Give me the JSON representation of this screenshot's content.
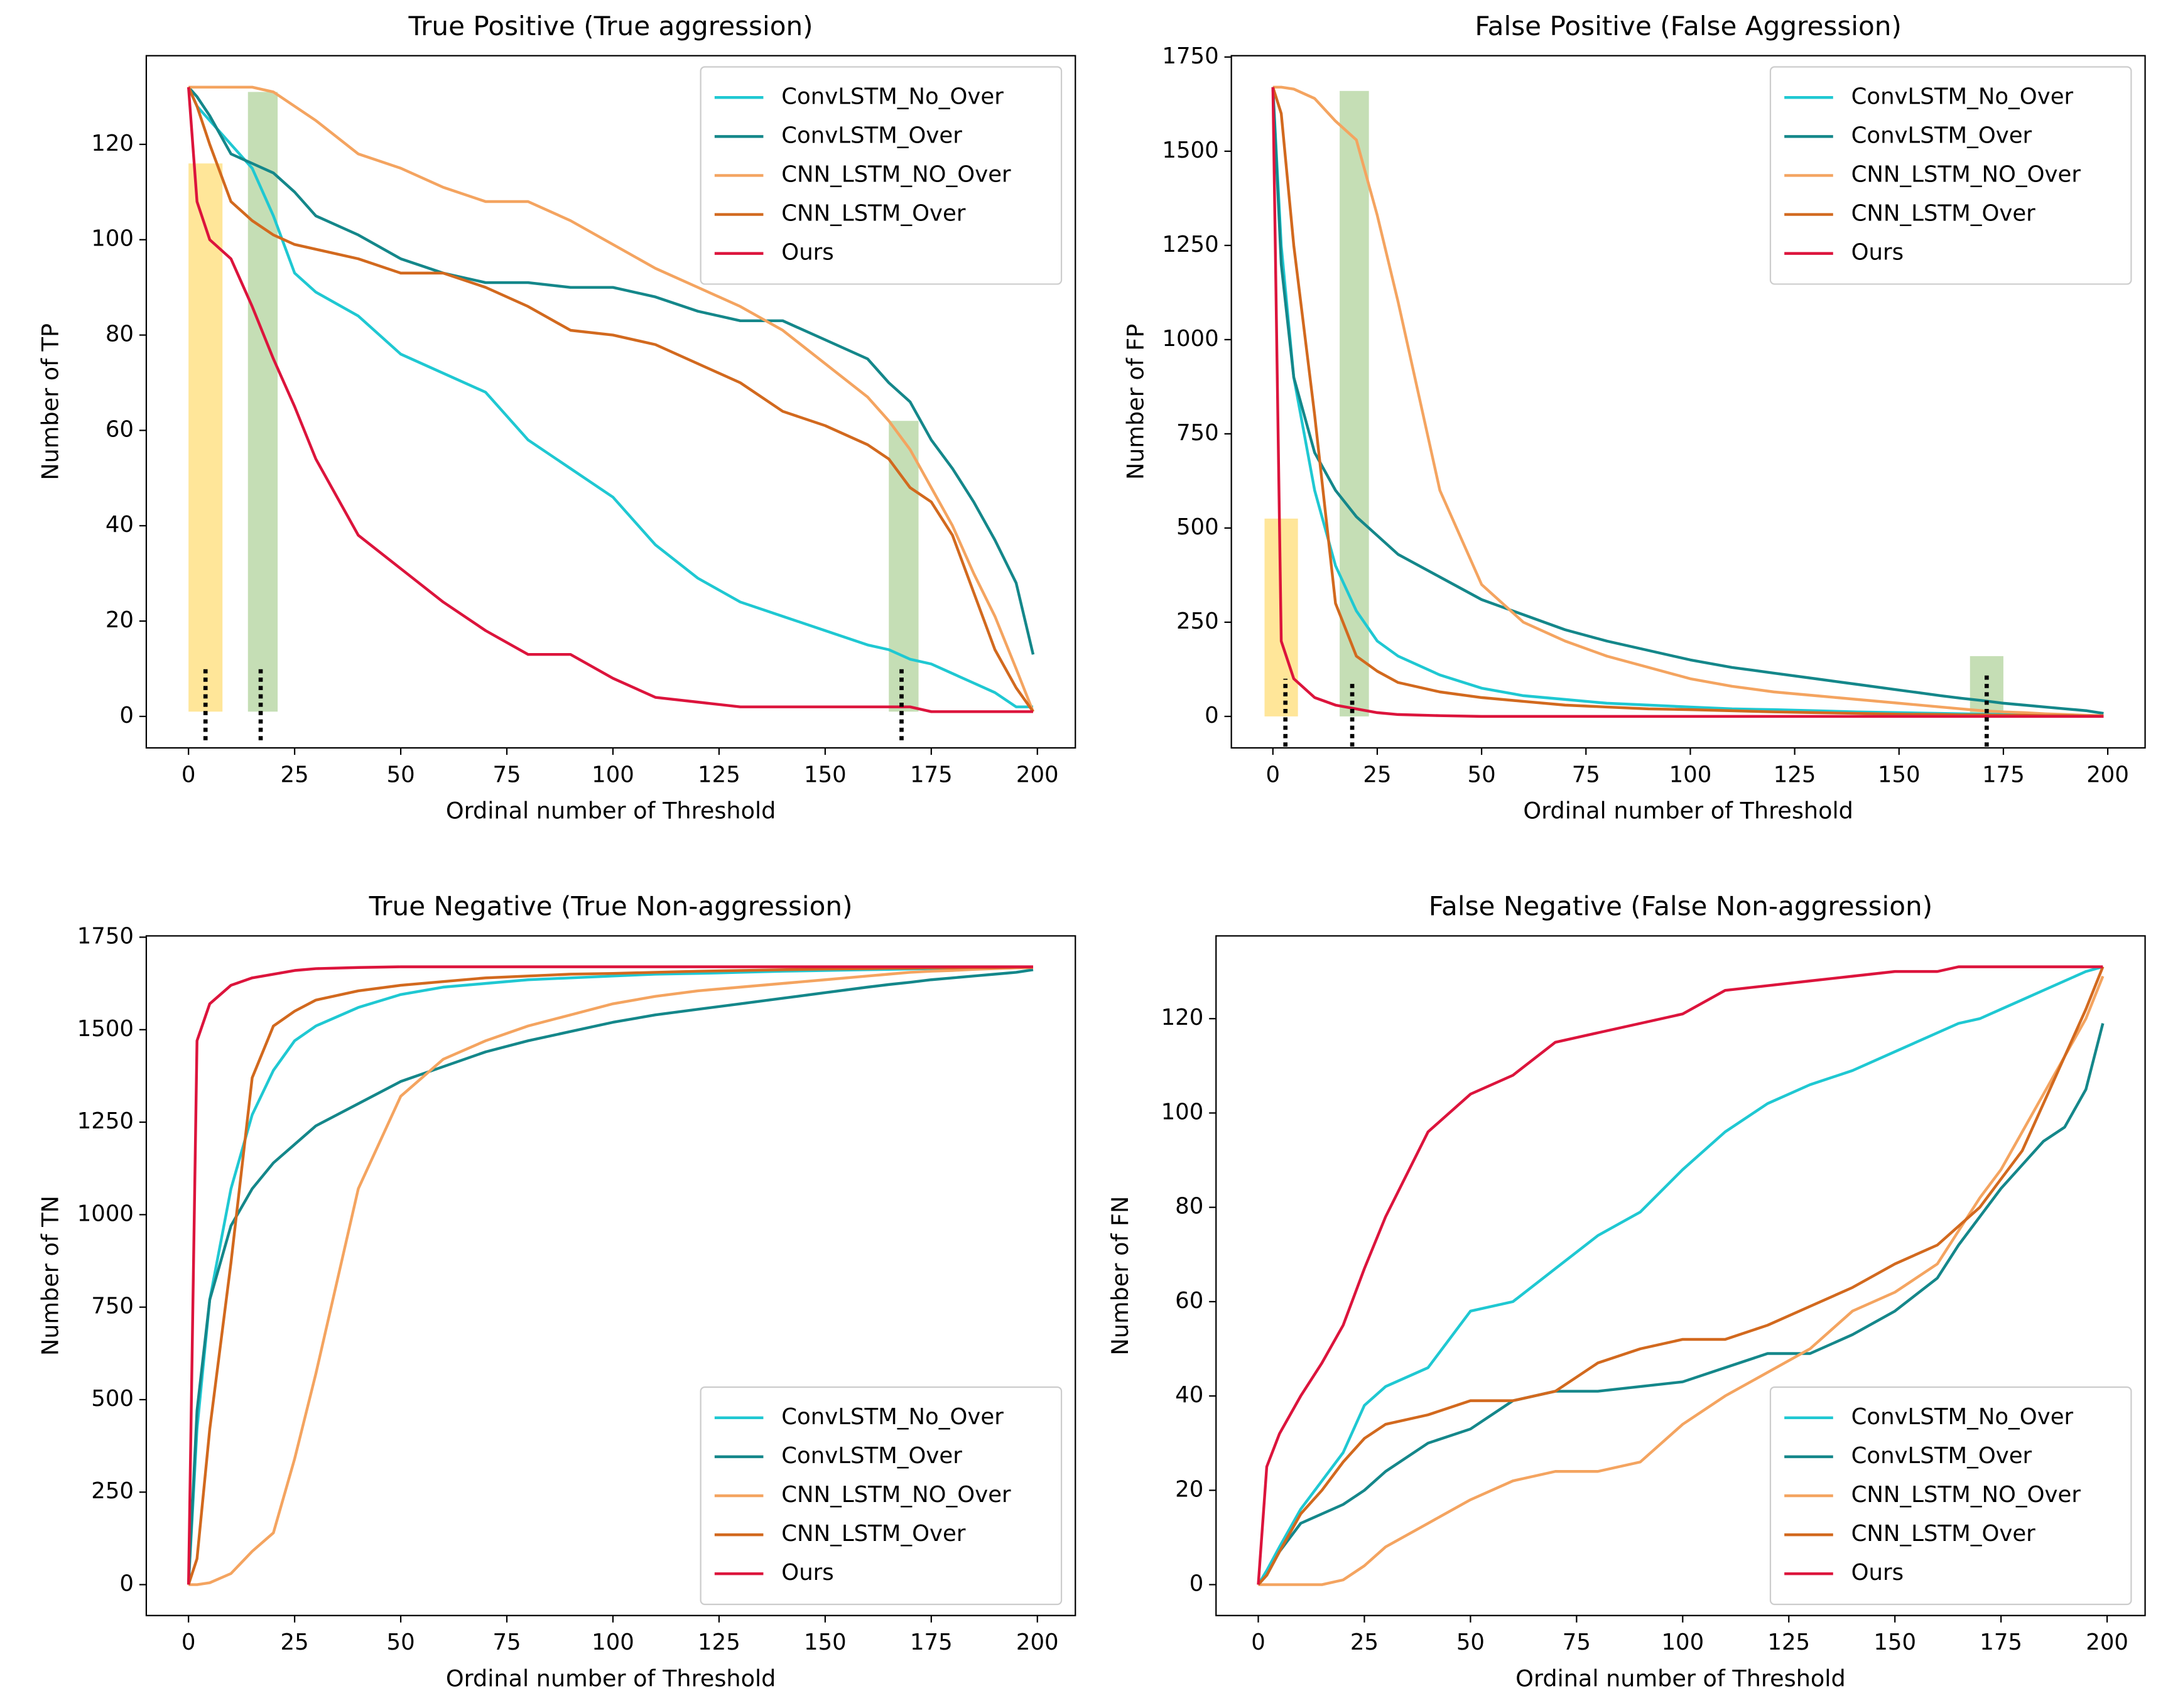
{
  "chart_data": [
    {
      "type": "line",
      "title": "True Positive (True aggression)",
      "xlabel": "Ordinal number of Threshold",
      "ylabel": "Number of TP",
      "x": [
        0,
        2,
        5,
        10,
        15,
        20,
        25,
        30,
        40,
        50,
        60,
        70,
        80,
        90,
        100,
        110,
        120,
        130,
        140,
        150,
        160,
        165,
        170,
        175,
        180,
        185,
        190,
        195,
        199
      ],
      "xlim": [
        -9.95,
        208.95
      ],
      "xticks": [
        0,
        25,
        50,
        75,
        100,
        125,
        150,
        175,
        200
      ],
      "ylim": [
        -6.6,
        138.6
      ],
      "yticks": [
        0,
        20,
        40,
        60,
        80,
        100,
        120
      ],
      "legend": "upper right",
      "highlights": [
        {
          "x": [
            0,
            8
          ],
          "y": [
            1,
            116
          ],
          "color": "#ffe699"
        },
        {
          "x": [
            14,
            21
          ],
          "y": [
            1,
            131
          ],
          "color": "#c5deb5"
        },
        {
          "x": [
            165,
            172
          ],
          "y": [
            1,
            62
          ],
          "color": "#c5deb5"
        }
      ],
      "markers": [
        {
          "x": 4,
          "y": [
            -5,
            10
          ]
        },
        {
          "x": 17,
          "y": [
            -5,
            10
          ]
        },
        {
          "x": 168,
          "y": [
            -5,
            10
          ]
        }
      ],
      "series": [
        {
          "name": "ConvLSTM_No_Over",
          "color": "#1fc8d2",
          "values": [
            132,
            128,
            125,
            120,
            115,
            105,
            93,
            89,
            84,
            76,
            72,
            68,
            58,
            52,
            46,
            36,
            29,
            24,
            21,
            18,
            15,
            14,
            12,
            11,
            9,
            7,
            5,
            2,
            2
          ]
        },
        {
          "name": "ConvLSTM_Over",
          "color": "#14878a",
          "values": [
            132,
            130,
            126,
            118,
            116,
            114,
            110,
            105,
            101,
            96,
            93,
            91,
            91,
            90,
            90,
            88,
            85,
            83,
            83,
            79,
            75,
            70,
            66,
            58,
            52,
            45,
            37,
            28,
            13
          ]
        },
        {
          "name": "CNN_LSTM_NO_Over",
          "color": "#f4a460",
          "values": [
            132,
            132,
            132,
            132,
            132,
            131,
            128,
            125,
            118,
            115,
            111,
            108,
            108,
            104,
            99,
            94,
            90,
            86,
            81,
            74,
            67,
            62,
            56,
            48,
            40,
            30,
            21,
            10,
            1
          ]
        },
        {
          "name": "CNN_LSTM_Over",
          "color": "#d2691e",
          "values": [
            132,
            128,
            120,
            108,
            104,
            101,
            99,
            98,
            96,
            93,
            93,
            90,
            86,
            81,
            80,
            78,
            74,
            70,
            64,
            61,
            57,
            54,
            48,
            45,
            38,
            26,
            14,
            6,
            1
          ]
        },
        {
          "name": "Ours",
          "color": "#dc143c",
          "values": [
            132,
            108,
            100,
            96,
            86,
            75,
            65,
            54,
            38,
            31,
            24,
            18,
            13,
            13,
            8,
            4,
            3,
            2,
            2,
            2,
            2,
            2,
            2,
            1,
            1,
            1,
            1,
            1,
            1
          ]
        }
      ]
    },
    {
      "type": "line",
      "title": "False Positive (False Aggression)",
      "xlabel": "Ordinal number of Threshold",
      "ylabel": "Number of FP",
      "x": [
        0,
        2,
        5,
        10,
        15,
        20,
        25,
        30,
        40,
        50,
        60,
        70,
        80,
        90,
        100,
        110,
        120,
        130,
        140,
        150,
        160,
        165,
        170,
        175,
        180,
        185,
        190,
        195,
        199
      ],
      "xlim": [
        -9.95,
        208.95
      ],
      "xticks": [
        0,
        25,
        50,
        75,
        100,
        125,
        150,
        175,
        200
      ],
      "ylim": [
        -83.5,
        1753.5
      ],
      "yticks": [
        0,
        250,
        500,
        750,
        1000,
        1250,
        1500,
        1750
      ],
      "legend": "upper right",
      "highlights": [
        {
          "x": [
            -2,
            6
          ],
          "y": [
            0,
            525
          ],
          "color": "#ffe699"
        },
        {
          "x": [
            16,
            23
          ],
          "y": [
            0,
            1660
          ],
          "color": "#c5deb5"
        },
        {
          "x": [
            167,
            175
          ],
          "y": [
            0,
            160
          ],
          "color": "#c5deb5"
        }
      ],
      "markers": [
        {
          "x": 3,
          "y": [
            -80,
            100
          ]
        },
        {
          "x": 19,
          "y": [
            -80,
            90
          ]
        },
        {
          "x": 171,
          "y": [
            -80,
            110
          ]
        }
      ],
      "series": [
        {
          "name": "ConvLSTM_No_Over",
          "color": "#1fc8d2",
          "values": [
            1670,
            1250,
            900,
            600,
            400,
            280,
            200,
            160,
            110,
            75,
            55,
            45,
            35,
            30,
            25,
            20,
            18,
            15,
            12,
            10,
            8,
            7,
            6,
            5,
            4,
            3,
            2,
            1,
            1
          ]
        },
        {
          "name": "ConvLSTM_Over",
          "color": "#14878a",
          "values": [
            1670,
            1200,
            900,
            700,
            600,
            530,
            480,
            430,
            370,
            310,
            270,
            230,
            200,
            175,
            150,
            130,
            115,
            100,
            85,
            70,
            55,
            48,
            42,
            35,
            30,
            25,
            20,
            15,
            8
          ]
        },
        {
          "name": "CNN_LSTM_NO_Over",
          "color": "#f4a460",
          "values": [
            1670,
            1670,
            1665,
            1640,
            1580,
            1530,
            1330,
            1100,
            600,
            350,
            250,
            200,
            160,
            130,
            100,
            80,
            65,
            55,
            45,
            35,
            25,
            20,
            15,
            12,
            10,
            7,
            5,
            3,
            2
          ]
        },
        {
          "name": "CNN_LSTM_Over",
          "color": "#d2691e",
          "values": [
            1670,
            1600,
            1250,
            800,
            300,
            160,
            120,
            90,
            65,
            50,
            40,
            30,
            25,
            20,
            18,
            15,
            12,
            10,
            8,
            6,
            5,
            4,
            4,
            3,
            3,
            2,
            2,
            1,
            1
          ]
        },
        {
          "name": "Ours",
          "color": "#dc143c",
          "values": [
            1670,
            200,
            100,
            50,
            30,
            20,
            10,
            5,
            2,
            0,
            0,
            0,
            0,
            0,
            0,
            0,
            0,
            0,
            0,
            0,
            0,
            0,
            0,
            0,
            0,
            0,
            0,
            0,
            0
          ]
        }
      ]
    },
    {
      "type": "line",
      "title": "True Negative (True Non-aggression)",
      "xlabel": "Ordinal number of Threshold",
      "ylabel": "Number of TN",
      "x": [
        0,
        2,
        5,
        10,
        15,
        20,
        25,
        30,
        40,
        50,
        60,
        70,
        80,
        90,
        100,
        110,
        120,
        130,
        140,
        150,
        160,
        165,
        170,
        175,
        180,
        185,
        190,
        195,
        199
      ],
      "xlim": [
        -9.95,
        208.95
      ],
      "xticks": [
        0,
        25,
        50,
        75,
        100,
        125,
        150,
        175,
        200
      ],
      "ylim": [
        -83.5,
        1753.5
      ],
      "yticks": [
        0,
        250,
        500,
        750,
        1000,
        1250,
        1500,
        1750
      ],
      "legend": "lower right",
      "series": [
        {
          "name": "ConvLSTM_No_Over",
          "color": "#1fc8d2",
          "values": [
            0,
            420,
            770,
            1070,
            1270,
            1390,
            1470,
            1510,
            1560,
            1595,
            1615,
            1625,
            1635,
            1640,
            1645,
            1650,
            1652,
            1655,
            1658,
            1660,
            1662,
            1663,
            1664,
            1665,
            1666,
            1667,
            1668,
            1669,
            1669
          ]
        },
        {
          "name": "ConvLSTM_Over",
          "color": "#14878a",
          "values": [
            0,
            470,
            770,
            970,
            1070,
            1140,
            1190,
            1240,
            1300,
            1360,
            1400,
            1440,
            1470,
            1495,
            1520,
            1540,
            1555,
            1570,
            1585,
            1600,
            1615,
            1622,
            1628,
            1635,
            1640,
            1645,
            1650,
            1655,
            1662
          ]
        },
        {
          "name": "CNN_LSTM_NO_Over",
          "color": "#f4a460",
          "values": [
            0,
            0,
            5,
            30,
            90,
            140,
            340,
            570,
            1070,
            1320,
            1420,
            1470,
            1510,
            1540,
            1570,
            1590,
            1605,
            1615,
            1625,
            1635,
            1645,
            1650,
            1655,
            1658,
            1660,
            1663,
            1665,
            1667,
            1668
          ]
        },
        {
          "name": "CNN_LSTM_Over",
          "color": "#d2691e",
          "values": [
            0,
            70,
            420,
            870,
            1370,
            1510,
            1550,
            1580,
            1605,
            1620,
            1630,
            1640,
            1645,
            1650,
            1652,
            1655,
            1658,
            1660,
            1662,
            1664,
            1665,
            1666,
            1666,
            1667,
            1667,
            1668,
            1668,
            1669,
            1669
          ]
        },
        {
          "name": "Ours",
          "color": "#dc143c",
          "values": [
            0,
            1470,
            1570,
            1620,
            1640,
            1650,
            1660,
            1665,
            1668,
            1670,
            1670,
            1670,
            1670,
            1670,
            1670,
            1670,
            1670,
            1670,
            1670,
            1670,
            1670,
            1670,
            1670,
            1670,
            1670,
            1670,
            1670,
            1670,
            1670
          ]
        }
      ]
    },
    {
      "type": "line",
      "title": "False Negative (False Non-aggression)",
      "xlabel": "Ordinal number of Threshold",
      "ylabel": "Number of FN",
      "x": [
        0,
        2,
        5,
        10,
        15,
        20,
        25,
        30,
        40,
        50,
        60,
        70,
        80,
        90,
        100,
        110,
        120,
        130,
        140,
        150,
        160,
        165,
        170,
        175,
        180,
        185,
        190,
        195,
        199
      ],
      "xlim": [
        -9.95,
        208.95
      ],
      "xticks": [
        0,
        25,
        50,
        75,
        100,
        125,
        150,
        175,
        200
      ],
      "ylim": [
        -6.55,
        137.55
      ],
      "yticks": [
        0,
        20,
        40,
        60,
        80,
        100,
        120
      ],
      "legend": "lower right",
      "series": [
        {
          "name": "ConvLSTM_No_Over",
          "color": "#1fc8d2",
          "values": [
            0,
            3,
            8,
            16,
            22,
            28,
            38,
            42,
            46,
            58,
            60,
            67,
            74,
            79,
            88,
            96,
            102,
            106,
            109,
            113,
            117,
            119,
            120,
            122,
            124,
            126,
            128,
            130,
            131
          ]
        },
        {
          "name": "ConvLSTM_Over",
          "color": "#14878a",
          "values": [
            0,
            2,
            7,
            13,
            15,
            17,
            20,
            24,
            30,
            33,
            39,
            41,
            41,
            42,
            43,
            46,
            49,
            49,
            53,
            58,
            65,
            72,
            78,
            84,
            89,
            94,
            97,
            105,
            119
          ]
        },
        {
          "name": "CNN_LSTM_NO_Over",
          "color": "#f4a460",
          "values": [
            0,
            0,
            0,
            0,
            0,
            1,
            4,
            8,
            13,
            18,
            22,
            24,
            24,
            26,
            34,
            40,
            45,
            50,
            58,
            62,
            68,
            75,
            82,
            88,
            96,
            104,
            112,
            120,
            129
          ]
        },
        {
          "name": "CNN_LSTM_Over",
          "color": "#d2691e",
          "values": [
            0,
            2,
            7,
            15,
            20,
            26,
            31,
            34,
            36,
            39,
            39,
            41,
            47,
            50,
            52,
            52,
            55,
            59,
            63,
            68,
            72,
            76,
            80,
            86,
            92,
            102,
            112,
            122,
            131
          ]
        },
        {
          "name": "Ours",
          "color": "#dc143c",
          "values": [
            0,
            25,
            32,
            40,
            47,
            55,
            67,
            78,
            96,
            104,
            108,
            115,
            117,
            119,
            121,
            126,
            127,
            128,
            129,
            130,
            130,
            131,
            131,
            131,
            131,
            131,
            131,
            131,
            131
          ]
        }
      ]
    }
  ]
}
